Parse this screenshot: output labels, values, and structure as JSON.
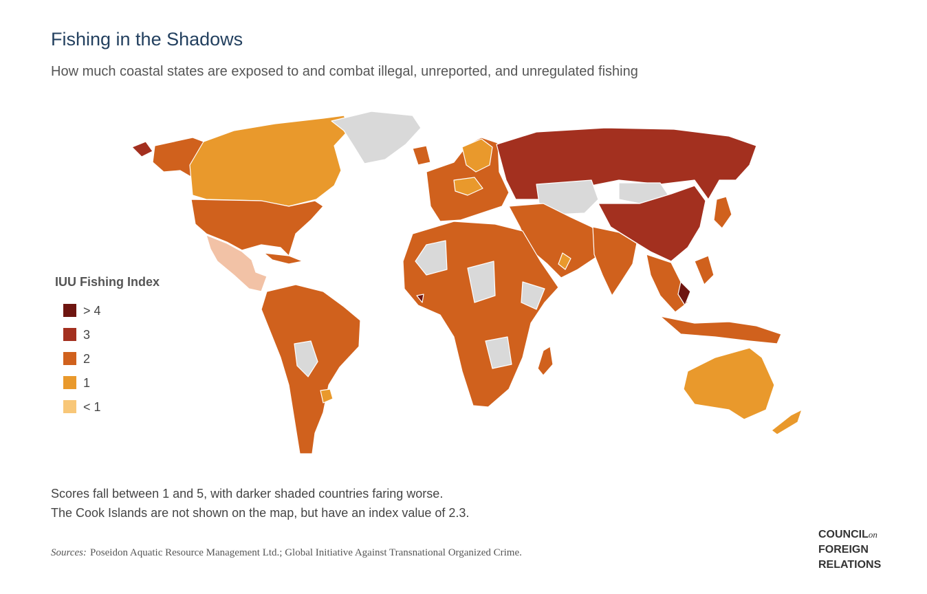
{
  "header": {
    "title": "Fishing in the Shadows",
    "subtitle": "How much coastal states are exposed to and combat illegal, unreported, and unregulated fishing"
  },
  "legend": {
    "title": "IUU Fishing Index",
    "items": [
      {
        "label": "> 4",
        "color": "#6e1510"
      },
      {
        "label": "3",
        "color": "#a3301f"
      },
      {
        "label": "2",
        "color": "#d0611d"
      },
      {
        "label": "1",
        "color": "#e9992c"
      },
      {
        "label": "< 1",
        "color": "#f8c778"
      }
    ]
  },
  "notes": [
    "Scores fall between 1 and 5, with darker shaded countries faring worse.",
    "The Cook Islands are not shown on the map, but have an index value of 2.3."
  ],
  "sources": {
    "label": "Sources:",
    "text": "Poseidon Aquatic Resource Management Ltd.; Global Initiative Against Transnational Organized Crime."
  },
  "logo": {
    "lines": [
      "COUNCIL",
      "on",
      "FOREIGN",
      "RELATIONS"
    ]
  }
}
